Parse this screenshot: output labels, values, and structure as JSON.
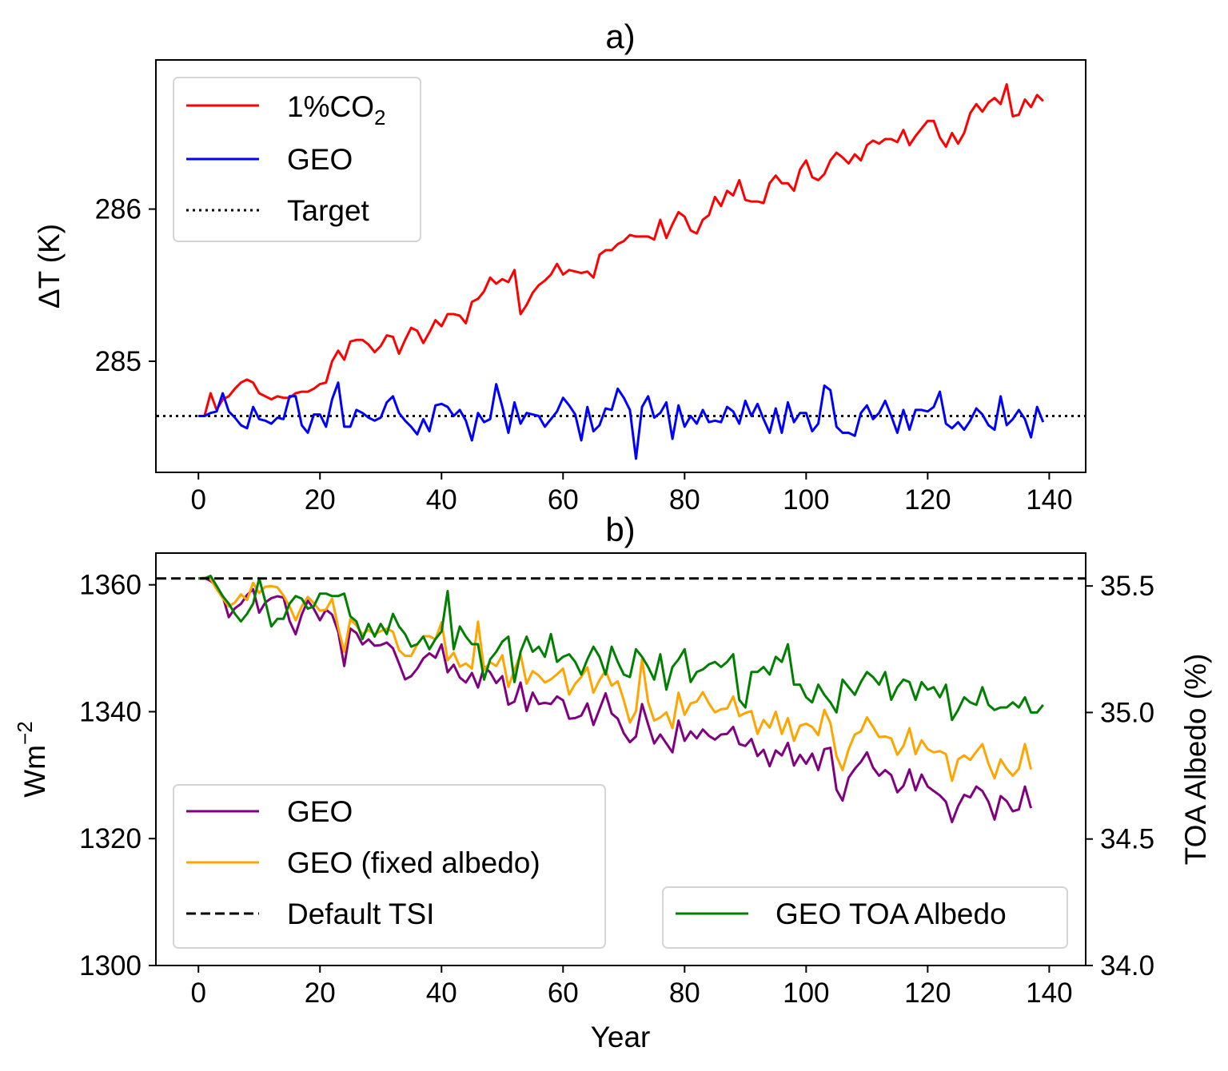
{
  "chart_data": [
    {
      "type": "line",
      "title": "a)",
      "xlabel": "",
      "ylabel": "ΔT (K)",
      "xlim": [
        -7,
        146
      ],
      "ylim": [
        284.27,
        286.98
      ],
      "xticks": [
        0,
        20,
        40,
        60,
        80,
        100,
        120,
        140
      ],
      "yticks": [
        285,
        286
      ],
      "legend_position": "upper-left",
      "target": 284.64,
      "series": [
        {
          "name": "1%CO",
          "name_sub": "2",
          "color": "#ff0000",
          "style": "solid",
          "x_start": 0,
          "values": [
            284.64,
            284.64,
            284.79,
            284.68,
            284.75,
            284.77,
            284.82,
            284.86,
            284.88,
            284.86,
            284.79,
            284.77,
            284.75,
            284.77,
            284.76,
            284.76,
            284.79,
            284.8,
            284.8,
            284.82,
            284.85,
            284.86,
            285.0,
            285.07,
            285.01,
            285.13,
            285.14,
            285.14,
            285.11,
            285.06,
            285.1,
            285.17,
            285.16,
            285.05,
            285.14,
            285.22,
            285.2,
            285.12,
            285.19,
            285.27,
            285.23,
            285.31,
            285.31,
            285.3,
            285.25,
            285.39,
            285.41,
            285.46,
            285.55,
            285.51,
            285.54,
            285.52,
            285.6,
            285.31,
            285.37,
            285.45,
            285.5,
            285.53,
            285.57,
            285.64,
            285.57,
            285.6,
            285.59,
            285.58,
            285.59,
            285.55,
            285.7,
            285.73,
            285.73,
            285.77,
            285.79,
            285.83,
            285.82,
            285.82,
            285.82,
            285.8,
            285.93,
            285.81,
            285.9,
            285.98,
            285.95,
            285.86,
            285.84,
            285.93,
            285.96,
            286.08,
            286.02,
            286.12,
            286.09,
            286.19,
            286.06,
            286.05,
            286.05,
            286.04,
            286.17,
            286.22,
            286.17,
            286.17,
            286.12,
            286.26,
            286.32,
            286.21,
            286.19,
            286.23,
            286.32,
            286.37,
            286.34,
            286.3,
            286.36,
            286.32,
            286.42,
            286.45,
            286.43,
            286.46,
            286.46,
            286.44,
            286.52,
            286.42,
            286.48,
            286.53,
            286.58,
            286.58,
            286.47,
            286.41,
            286.5,
            286.43,
            286.5,
            286.63,
            286.69,
            286.64,
            286.7,
            286.73,
            286.69,
            286.82,
            286.61,
            286.62,
            286.72,
            286.67,
            286.75,
            286.71
          ]
        },
        {
          "name": "GEO",
          "color": "#0000ff",
          "style": "solid",
          "x_start": 0,
          "values": [
            284.64,
            284.64,
            284.66,
            284.67,
            284.79,
            284.67,
            284.63,
            284.58,
            284.56,
            284.7,
            284.62,
            284.61,
            284.59,
            284.63,
            284.62,
            284.77,
            284.77,
            284.58,
            284.53,
            284.65,
            284.65,
            284.57,
            284.75,
            284.86,
            284.57,
            284.57,
            284.68,
            284.66,
            284.63,
            284.61,
            284.63,
            284.73,
            284.77,
            284.66,
            284.61,
            284.57,
            284.52,
            284.62,
            284.54,
            284.71,
            284.72,
            284.7,
            284.64,
            284.68,
            284.61,
            284.48,
            284.66,
            284.6,
            284.62,
            284.85,
            284.7,
            284.53,
            284.73,
            284.59,
            284.66,
            284.65,
            284.64,
            284.57,
            284.62,
            284.67,
            284.76,
            284.71,
            284.65,
            284.48,
            284.7,
            284.54,
            284.58,
            284.69,
            284.68,
            284.82,
            284.76,
            284.68,
            284.36,
            284.7,
            284.77,
            284.63,
            284.66,
            284.73,
            284.49,
            284.71,
            284.57,
            284.64,
            284.59,
            284.68,
            284.6,
            284.61,
            284.6,
            284.7,
            284.67,
            284.59,
            284.74,
            284.64,
            284.72,
            284.62,
            284.53,
            284.69,
            284.53,
            284.73,
            284.6,
            284.66,
            284.66,
            284.54,
            284.59,
            284.84,
            284.81,
            284.57,
            284.53,
            284.53,
            284.51,
            284.66,
            284.71,
            284.62,
            284.66,
            284.74,
            284.64,
            284.53,
            284.68,
            284.55,
            284.68,
            284.68,
            284.67,
            284.7,
            284.8,
            284.59,
            284.56,
            284.6,
            284.55,
            284.61,
            284.69,
            284.65,
            284.58,
            284.55,
            284.77,
            284.58,
            284.62,
            284.68,
            284.62,
            284.5,
            284.7,
            284.6
          ]
        },
        {
          "name": "Target",
          "color": "#000000",
          "style": "dotted"
        }
      ]
    },
    {
      "type": "line",
      "title": "b)",
      "xlabel": "Year",
      "ylabel": "Wm",
      "ylabel_sup": "−2",
      "y2label": "TOA Albedo (%)",
      "y2label_color": "#008000",
      "xlim": [
        -7,
        146
      ],
      "ylim": [
        1300,
        1365
      ],
      "y2lim": [
        34.0,
        35.63
      ],
      "xticks": [
        0,
        20,
        40,
        60,
        80,
        100,
        120,
        140
      ],
      "yticks": [
        1300,
        1320,
        1340,
        1360
      ],
      "y2ticks": [
        "34.0",
        "34.5",
        "35.0",
        "35.5"
      ],
      "legend_position": "lower-left",
      "legend2_position": "lower-right",
      "default_tsi": 1361,
      "series": [
        {
          "name": "GEO",
          "color": "#800080",
          "style": "solid",
          "axis": "left",
          "x_start": 0,
          "values": [
            1361.0,
            1361.1,
            1360.6,
            1359.8,
            1358.2,
            1354.9,
            1356.3,
            1357.0,
            1358.4,
            1359.3,
            1355.6,
            1357.2,
            1357.9,
            1358.2,
            1358.0,
            1354.3,
            1352.2,
            1355.3,
            1357.5,
            1356.2,
            1354.4,
            1356.1,
            1355.3,
            1352.6,
            1347.2,
            1353.1,
            1352.4,
            1350.6,
            1351.4,
            1350.4,
            1350.5,
            1350.9,
            1350.0,
            1347.6,
            1345.1,
            1345.6,
            1346.8,
            1348.4,
            1349.2,
            1348.5,
            1350.6,
            1346.2,
            1347.4,
            1345.4,
            1344.6,
            1346.1,
            1343.8,
            1347.1,
            1346.2,
            1344.5,
            1345.6,
            1341.1,
            1341.6,
            1344.6,
            1340.1,
            1343.0,
            1341.2,
            1341.4,
            1341.2,
            1342.4,
            1341.8,
            1338.9,
            1339.0,
            1339.4,
            1341.3,
            1337.9,
            1340.4,
            1342.9,
            1339.7,
            1338.9,
            1336.6,
            1335.2,
            1336.1,
            1341.2,
            1338.0,
            1335.0,
            1336.4,
            1335.0,
            1333.6,
            1338.6,
            1335.4,
            1336.9,
            1335.8,
            1337.2,
            1336.2,
            1335.6,
            1336.4,
            1336.5,
            1337.6,
            1334.9,
            1334.6,
            1335.7,
            1333.0,
            1334.0,
            1331.4,
            1333.9,
            1333.1,
            1335.1,
            1331.5,
            1333.2,
            1331.8,
            1333.4,
            1330.8,
            1334.1,
            1334.3,
            1327.7,
            1326.0,
            1329.6,
            1331.0,
            1332.1,
            1333.6,
            1331.2,
            1329.9,
            1330.8,
            1330.0,
            1327.3,
            1328.3,
            1330.9,
            1327.6,
            1330.1,
            1328.2,
            1327.5,
            1326.8,
            1325.8,
            1322.6,
            1325.1,
            1326.9,
            1326.5,
            1328.2,
            1327.5,
            1325.8,
            1323.0,
            1326.7,
            1325.9,
            1324.3,
            1324.6,
            1328.2,
            1324.8
          ]
        },
        {
          "name": "GEO (fixed albedo)",
          "color": "#ffa500",
          "style": "solid",
          "axis": "left",
          "x_start": 0,
          "values": [
            1361.0,
            1361.1,
            1360.9,
            1359.3,
            1357.9,
            1356.6,
            1357.2,
            1358.5,
            1357.6,
            1360.3,
            1358.7,
            1359.7,
            1359.8,
            1359.6,
            1358.3,
            1356.6,
            1354.4,
            1356.6,
            1358.1,
            1357.1,
            1355.9,
            1356.1,
            1357.8,
            1353.3,
            1349.4,
            1354.6,
            1353.6,
            1352.2,
            1352.9,
            1352.2,
            1352.7,
            1353.1,
            1352.6,
            1349.7,
            1348.8,
            1348.8,
            1350.6,
            1351.9,
            1351.9,
            1351.4,
            1354.1,
            1348.1,
            1349.3,
            1347.1,
            1347.6,
            1346.8,
            1354.2,
            1346.6,
            1347.8,
            1347.2,
            1348.9,
            1343.9,
            1346.6,
            1349.1,
            1344.4,
            1346.4,
            1345.7,
            1344.6,
            1345.1,
            1345.9,
            1346.8,
            1342.7,
            1344.4,
            1345.5,
            1347.0,
            1343.0,
            1345.0,
            1346.5,
            1344.1,
            1344.8,
            1341.8,
            1338.3,
            1340.1,
            1348.3,
            1341.5,
            1338.6,
            1339.1,
            1339.9,
            1337.4,
            1343.0,
            1339.5,
            1341.3,
            1341.6,
            1343.1,
            1341.3,
            1339.9,
            1340.4,
            1340.5,
            1342.4,
            1339.3,
            1339.8,
            1340.1,
            1336.5,
            1338.7,
            1337.5,
            1340.0,
            1336.5,
            1339.0,
            1335.4,
            1337.8,
            1338.1,
            1337.6,
            1336.3,
            1340.3,
            1338.2,
            1333.0,
            1330.8,
            1334.1,
            1336.4,
            1336.9,
            1339.1,
            1337.6,
            1336.0,
            1336.1,
            1335.8,
            1333.2,
            1334.6,
            1337.4,
            1333.3,
            1335.5,
            1334.1,
            1333.6,
            1333.8,
            1333.3,
            1329.1,
            1332.5,
            1333.1,
            1332.4,
            1333.7,
            1334.9,
            1331.8,
            1329.5,
            1332.5,
            1331.0,
            1329.9,
            1331.0,
            1334.9,
            1330.9
          ]
        },
        {
          "name": "Default TSI",
          "color": "#000000",
          "style": "dashed",
          "axis": "left"
        },
        {
          "name": "GEO TOA Albedo",
          "color": "#008000",
          "style": "solid",
          "axis": "right",
          "x_start": 0,
          "values": [
            35.53,
            35.53,
            35.54,
            35.5,
            35.46,
            35.43,
            35.39,
            35.36,
            35.39,
            35.43,
            35.53,
            35.44,
            35.34,
            35.37,
            35.37,
            35.43,
            35.46,
            35.45,
            35.41,
            35.42,
            35.47,
            35.47,
            35.46,
            35.46,
            35.47,
            35.38,
            35.36,
            35.29,
            35.35,
            35.3,
            35.35,
            35.31,
            35.39,
            35.34,
            35.31,
            35.26,
            35.27,
            35.3,
            35.25,
            35.29,
            35.32,
            35.48,
            35.25,
            35.34,
            35.3,
            35.27,
            35.27,
            35.13,
            35.21,
            35.24,
            35.28,
            35.3,
            35.12,
            35.24,
            35.3,
            35.24,
            35.26,
            35.22,
            35.31,
            35.2,
            35.22,
            35.23,
            35.2,
            35.15,
            35.21,
            35.26,
            35.22,
            35.15,
            35.26,
            35.2,
            35.15,
            35.14,
            35.25,
            35.22,
            35.18,
            35.13,
            35.23,
            35.09,
            35.18,
            35.21,
            35.25,
            35.12,
            35.16,
            35.17,
            35.19,
            35.2,
            35.18,
            35.2,
            35.23,
            35.05,
            35.02,
            35.16,
            35.16,
            35.18,
            35.15,
            35.22,
            35.2,
            35.27,
            35.11,
            35.11,
            35.06,
            35.04,
            35.11,
            35.07,
            35.04,
            35.0,
            35.13,
            35.1,
            35.07,
            35.12,
            35.16,
            35.14,
            35.11,
            35.16,
            35.05,
            35.1,
            35.13,
            35.12,
            35.05,
            35.12,
            35.09,
            35.1,
            35.06,
            35.11,
            34.97,
            35.01,
            35.06,
            35.04,
            35.03,
            35.1,
            35.03,
            35.01,
            35.02,
            35.02,
            35.04,
            35.02,
            35.06,
            35.0,
            35.0,
            35.03
          ]
        }
      ]
    }
  ]
}
